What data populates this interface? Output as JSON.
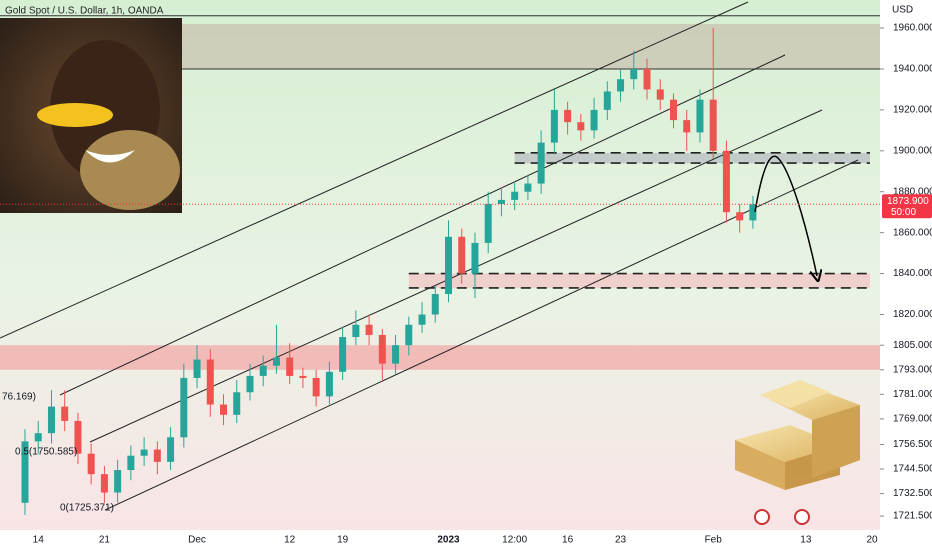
{
  "chart_data": {
    "type": "candlestick",
    "title": "Gold Spot / U.S. Dollar, 1h, OANDA",
    "y_axis_label": "USD",
    "categories": [
      null,
      "14",
      null,
      null,
      null,
      null,
      "21",
      null,
      null,
      null,
      null,
      null,
      null,
      "Dec",
      null,
      null,
      null,
      null,
      null,
      null,
      "12",
      null,
      null,
      null,
      "19",
      null,
      null,
      null,
      null,
      null,
      null,
      null,
      "2023",
      null,
      null,
      null,
      null,
      "12:00",
      null,
      null,
      null,
      "16",
      null,
      null,
      null,
      "23",
      null,
      null,
      null,
      null,
      null,
      null,
      "Feb",
      null,
      null,
      null,
      null,
      null,
      null,
      "13",
      null,
      null,
      null,
      null,
      "20"
    ],
    "open": [
      1728,
      1758,
      1762,
      1775,
      1768,
      1752,
      1742,
      1733,
      1744,
      1751,
      1754,
      1748,
      1760,
      1789,
      1798,
      1776,
      1771,
      1782,
      1790,
      1795,
      1799,
      1790,
      1789,
      1780,
      1792,
      1809,
      1815,
      1810,
      1796,
      1805,
      1815,
      1820,
      1830,
      1858,
      1840,
      1855,
      1874,
      1876,
      1880,
      1884,
      1904,
      1920,
      1914,
      1910,
      1920,
      1929,
      1935,
      1940,
      1930,
      1925,
      1915,
      1909,
      1925,
      1900,
      1870,
      1866,
      null,
      null,
      null,
      null,
      null,
      null,
      null,
      null,
      null
    ],
    "high": [
      1764,
      1768,
      1783,
      1783,
      1772,
      1757,
      1746,
      1749,
      1756,
      1760,
      1758,
      1765,
      1796,
      1805,
      1803,
      1781,
      1788,
      1796,
      1800,
      1815,
      1806,
      1794,
      1793,
      1797,
      1814,
      1822,
      1820,
      1813,
      1810,
      1819,
      1826,
      1834,
      1866,
      1862,
      1860,
      1880,
      1882,
      1885,
      1888,
      1910,
      1930,
      1924,
      1918,
      1926,
      1934,
      1940,
      1949,
      1945,
      1935,
      1928,
      1920,
      1930,
      1960,
      1905,
      1874,
      1878,
      null,
      null,
      null,
      null,
      null,
      null,
      null,
      null,
      null
    ],
    "low": [
      1722,
      1752,
      1757,
      1763,
      1747,
      1737,
      1728,
      1728,
      1739,
      1746,
      1742,
      1744,
      1755,
      1784,
      1770,
      1766,
      1767,
      1778,
      1785,
      1791,
      1786,
      1784,
      1775,
      1776,
      1788,
      1805,
      1805,
      1788,
      1791,
      1800,
      1811,
      1816,
      1826,
      1835,
      1828,
      1850,
      1868,
      1871,
      1876,
      1879,
      1899,
      1908,
      1905,
      1906,
      1915,
      1924,
      1930,
      1925,
      1920,
      1911,
      1900,
      1904,
      1896,
      1865,
      1860,
      1862,
      null,
      null,
      null,
      null,
      null,
      null,
      null,
      null,
      null
    ],
    "close": [
      1758,
      1762,
      1775,
      1768,
      1752,
      1742,
      1733,
      1744,
      1751,
      1754,
      1748,
      1760,
      1789,
      1798,
      1776,
      1771,
      1782,
      1790,
      1795,
      1799,
      1790,
      1789,
      1780,
      1792,
      1809,
      1815,
      1810,
      1796,
      1805,
      1815,
      1820,
      1830,
      1858,
      1840,
      1855,
      1874,
      1876,
      1880,
      1884,
      1904,
      1920,
      1914,
      1910,
      1920,
      1929,
      1935,
      1940,
      1930,
      1925,
      1915,
      1909,
      1925,
      1900,
      1870,
      1866,
      1873.9,
      null,
      null,
      null,
      null,
      null,
      null,
      null,
      null,
      null
    ],
    "up_color": "#26a69a",
    "down_color": "#ef5350",
    "ylim": [
      1714.7,
      1973.7
    ],
    "yticks": [
      {
        "value": 1960,
        "label": "1960.000"
      },
      {
        "value": 1940,
        "label": "1940.000"
      },
      {
        "value": 1920,
        "label": "1920.000"
      },
      {
        "value": 1900,
        "label": "1900.000"
      },
      {
        "value": 1880,
        "label": "1880.000"
      },
      {
        "value": 1860,
        "label": "1860.000"
      },
      {
        "value": 1840,
        "label": "1840.000"
      },
      {
        "value": 1820,
        "label": "1820.000"
      },
      {
        "value": 1805,
        "label": "1805.000"
      },
      {
        "value": 1793,
        "label": "1793.000"
      },
      {
        "value": 1781,
        "label": "1781.000"
      },
      {
        "value": 1769,
        "label": "1769.000"
      },
      {
        "value": 1756.5,
        "label": "1756.500"
      },
      {
        "value": 1744.5,
        "label": "1744.500"
      },
      {
        "value": 1732.5,
        "label": "1732.500"
      },
      {
        "value": 1721.5,
        "label": "1721.500"
      }
    ],
    "last_price": {
      "value": 1873.9,
      "label": "1873.900"
    },
    "countdown": "50:00",
    "levels": [
      1966,
      1940
    ],
    "zones": [
      {
        "low": 1940,
        "high": 1962,
        "from": 0,
        "color": "#c9bfae",
        "dashed": false
      },
      {
        "low": 1793,
        "high": 1805,
        "from": 0,
        "color": "#f2a5a5",
        "dashed": false
      },
      {
        "low": 1894,
        "high": 1899,
        "from": 37,
        "color": "#b8bcc4",
        "dashed": true
      },
      {
        "low": 1833,
        "high": 1840,
        "from": 29,
        "color": "#f2c4c4",
        "dashed": true
      }
    ],
    "fib_labels": [
      "76.169)",
      "0.5(1750.585)",
      "0(1725.371)"
    ]
  }
}
